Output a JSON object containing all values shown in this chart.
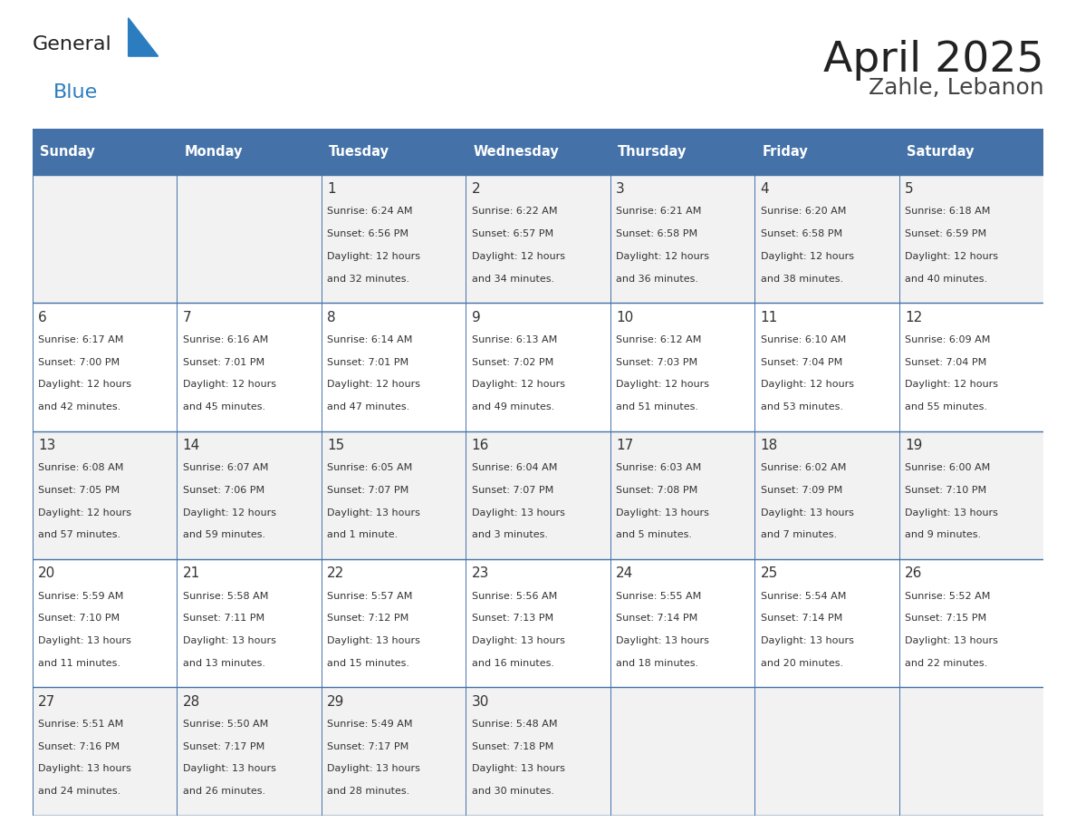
{
  "title": "April 2025",
  "subtitle": "Zahle, Lebanon",
  "days_of_week": [
    "Sunday",
    "Monday",
    "Tuesday",
    "Wednesday",
    "Thursday",
    "Friday",
    "Saturday"
  ],
  "header_bg_color": "#4472A8",
  "header_text_color": "#FFFFFF",
  "cell_bg_color_odd": "#F2F2F2",
  "cell_bg_color_even": "#FFFFFF",
  "text_color": "#333333",
  "border_color": "#4472A8",
  "title_color": "#222222",
  "subtitle_color": "#444444",
  "logo_general_color": "#222222",
  "logo_blue_color": "#2B7DC0",
  "calendar": [
    [
      {
        "day": null,
        "sunrise": null,
        "sunset": null,
        "daylight": null
      },
      {
        "day": null,
        "sunrise": null,
        "sunset": null,
        "daylight": null
      },
      {
        "day": 1,
        "sunrise": "6:24 AM",
        "sunset": "6:56 PM",
        "daylight": "12 hours\nand 32 minutes."
      },
      {
        "day": 2,
        "sunrise": "6:22 AM",
        "sunset": "6:57 PM",
        "daylight": "12 hours\nand 34 minutes."
      },
      {
        "day": 3,
        "sunrise": "6:21 AM",
        "sunset": "6:58 PM",
        "daylight": "12 hours\nand 36 minutes."
      },
      {
        "day": 4,
        "sunrise": "6:20 AM",
        "sunset": "6:58 PM",
        "daylight": "12 hours\nand 38 minutes."
      },
      {
        "day": 5,
        "sunrise": "6:18 AM",
        "sunset": "6:59 PM",
        "daylight": "12 hours\nand 40 minutes."
      }
    ],
    [
      {
        "day": 6,
        "sunrise": "6:17 AM",
        "sunset": "7:00 PM",
        "daylight": "12 hours\nand 42 minutes."
      },
      {
        "day": 7,
        "sunrise": "6:16 AM",
        "sunset": "7:01 PM",
        "daylight": "12 hours\nand 45 minutes."
      },
      {
        "day": 8,
        "sunrise": "6:14 AM",
        "sunset": "7:01 PM",
        "daylight": "12 hours\nand 47 minutes."
      },
      {
        "day": 9,
        "sunrise": "6:13 AM",
        "sunset": "7:02 PM",
        "daylight": "12 hours\nand 49 minutes."
      },
      {
        "day": 10,
        "sunrise": "6:12 AM",
        "sunset": "7:03 PM",
        "daylight": "12 hours\nand 51 minutes."
      },
      {
        "day": 11,
        "sunrise": "6:10 AM",
        "sunset": "7:04 PM",
        "daylight": "12 hours\nand 53 minutes."
      },
      {
        "day": 12,
        "sunrise": "6:09 AM",
        "sunset": "7:04 PM",
        "daylight": "12 hours\nand 55 minutes."
      }
    ],
    [
      {
        "day": 13,
        "sunrise": "6:08 AM",
        "sunset": "7:05 PM",
        "daylight": "12 hours\nand 57 minutes."
      },
      {
        "day": 14,
        "sunrise": "6:07 AM",
        "sunset": "7:06 PM",
        "daylight": "12 hours\nand 59 minutes."
      },
      {
        "day": 15,
        "sunrise": "6:05 AM",
        "sunset": "7:07 PM",
        "daylight": "13 hours\nand 1 minute."
      },
      {
        "day": 16,
        "sunrise": "6:04 AM",
        "sunset": "7:07 PM",
        "daylight": "13 hours\nand 3 minutes."
      },
      {
        "day": 17,
        "sunrise": "6:03 AM",
        "sunset": "7:08 PM",
        "daylight": "13 hours\nand 5 minutes."
      },
      {
        "day": 18,
        "sunrise": "6:02 AM",
        "sunset": "7:09 PM",
        "daylight": "13 hours\nand 7 minutes."
      },
      {
        "day": 19,
        "sunrise": "6:00 AM",
        "sunset": "7:10 PM",
        "daylight": "13 hours\nand 9 minutes."
      }
    ],
    [
      {
        "day": 20,
        "sunrise": "5:59 AM",
        "sunset": "7:10 PM",
        "daylight": "13 hours\nand 11 minutes."
      },
      {
        "day": 21,
        "sunrise": "5:58 AM",
        "sunset": "7:11 PM",
        "daylight": "13 hours\nand 13 minutes."
      },
      {
        "day": 22,
        "sunrise": "5:57 AM",
        "sunset": "7:12 PM",
        "daylight": "13 hours\nand 15 minutes."
      },
      {
        "day": 23,
        "sunrise": "5:56 AM",
        "sunset": "7:13 PM",
        "daylight": "13 hours\nand 16 minutes."
      },
      {
        "day": 24,
        "sunrise": "5:55 AM",
        "sunset": "7:14 PM",
        "daylight": "13 hours\nand 18 minutes."
      },
      {
        "day": 25,
        "sunrise": "5:54 AM",
        "sunset": "7:14 PM",
        "daylight": "13 hours\nand 20 minutes."
      },
      {
        "day": 26,
        "sunrise": "5:52 AM",
        "sunset": "7:15 PM",
        "daylight": "13 hours\nand 22 minutes."
      }
    ],
    [
      {
        "day": 27,
        "sunrise": "5:51 AM",
        "sunset": "7:16 PM",
        "daylight": "13 hours\nand 24 minutes."
      },
      {
        "day": 28,
        "sunrise": "5:50 AM",
        "sunset": "7:17 PM",
        "daylight": "13 hours\nand 26 minutes."
      },
      {
        "day": 29,
        "sunrise": "5:49 AM",
        "sunset": "7:17 PM",
        "daylight": "13 hours\nand 28 minutes."
      },
      {
        "day": 30,
        "sunrise": "5:48 AM",
        "sunset": "7:18 PM",
        "daylight": "13 hours\nand 30 minutes."
      },
      {
        "day": null,
        "sunrise": null,
        "sunset": null,
        "daylight": null
      },
      {
        "day": null,
        "sunrise": null,
        "sunset": null,
        "daylight": null
      },
      {
        "day": null,
        "sunrise": null,
        "sunset": null,
        "daylight": null
      }
    ]
  ]
}
